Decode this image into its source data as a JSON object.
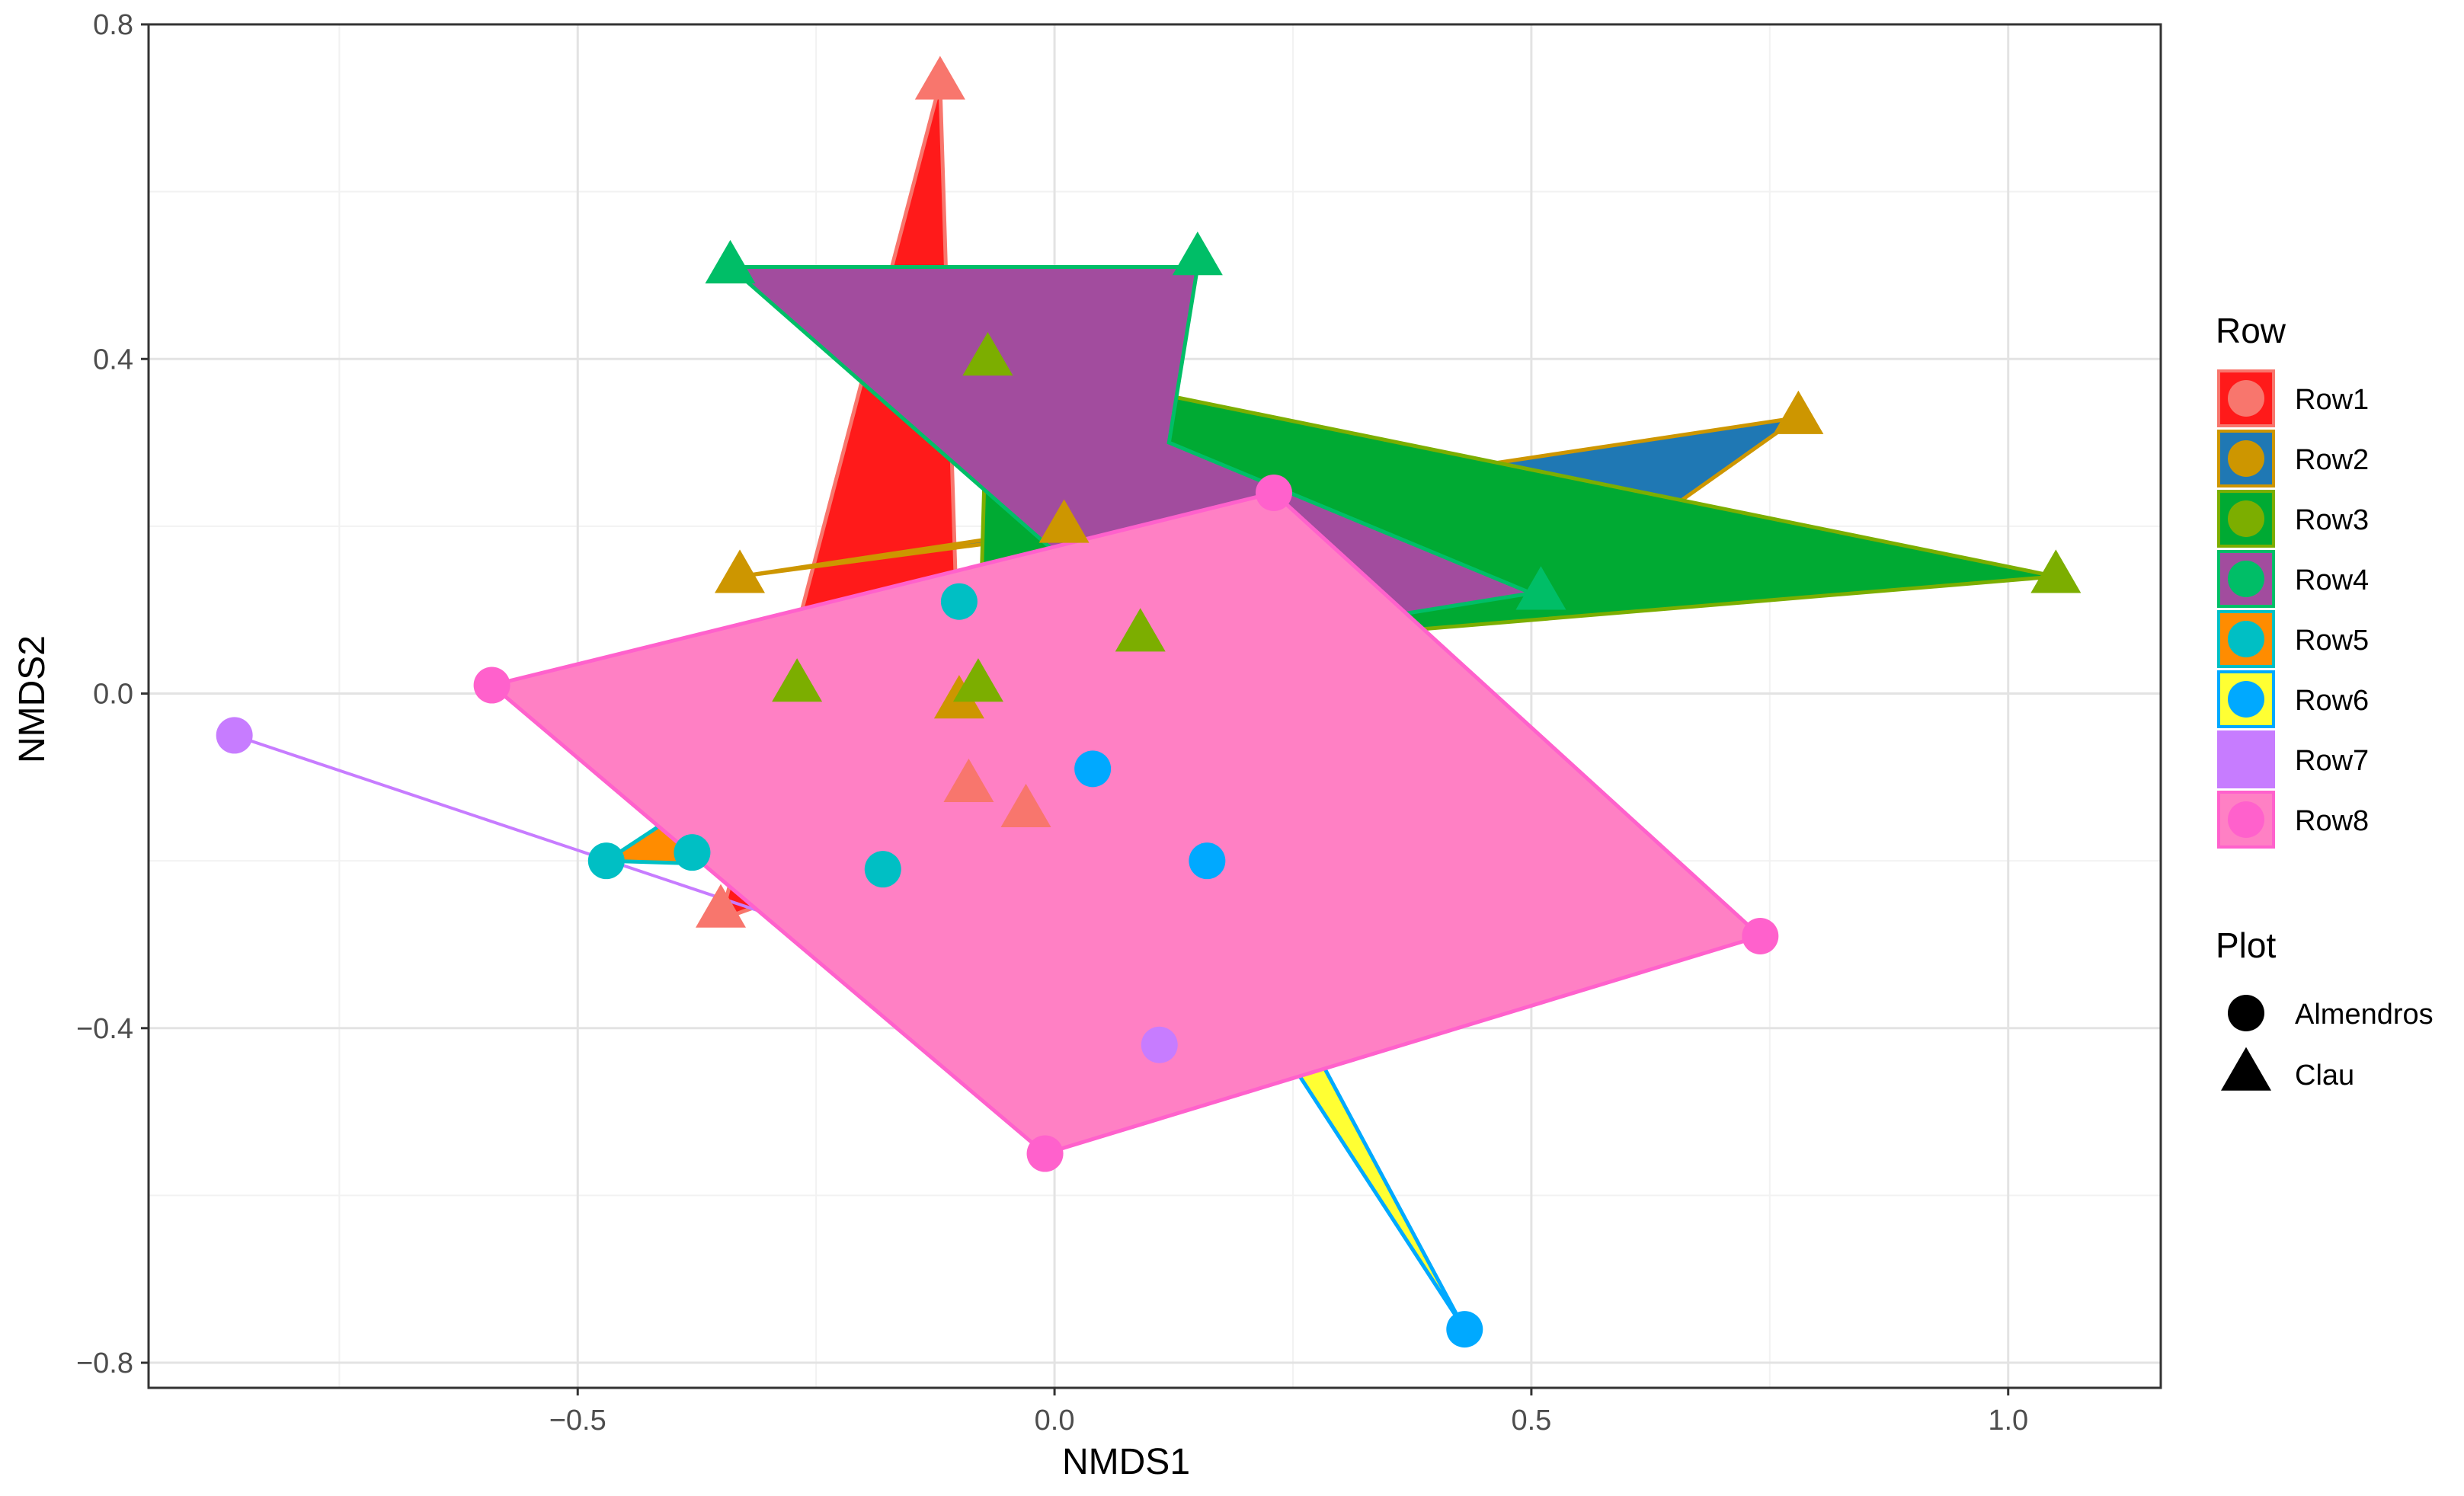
{
  "chart_data": {
    "type": "scatter",
    "title": "",
    "xlabel": "NMDS1",
    "ylabel": "NMDS2",
    "xlim": [
      -0.95,
      1.16
    ],
    "ylim": [
      -0.83,
      0.8
    ],
    "x_ticks": [
      -0.5,
      0.0,
      0.5,
      1.0
    ],
    "x_tick_labels": [
      "−0.5",
      "0.0",
      "0.5",
      "1.0"
    ],
    "y_ticks": [
      -0.8,
      -0.4,
      0.0,
      0.4,
      0.8
    ],
    "y_tick_labels": [
      "−0.8",
      "−0.4",
      "0.0",
      "0.4",
      "0.8"
    ],
    "grid": true,
    "legend_position": "right",
    "legend": {
      "color_title": "Row",
      "shape_title": "Plot",
      "shapes": [
        {
          "name": "Almendros",
          "shape": "circle"
        },
        {
          "name": "Clau",
          "shape": "triangle"
        }
      ]
    },
    "series": [
      {
        "name": "Row1",
        "color": "#F8766D",
        "fill": "#FF1A1A",
        "hull": [
          [
            -0.12,
            0.73
          ],
          [
            -0.1,
            0.0
          ],
          [
            -0.03,
            -0.14
          ],
          [
            -0.35,
            -0.27
          ]
        ],
        "points": [
          {
            "x": -0.12,
            "y": 0.73,
            "plot": "Clau"
          },
          {
            "x": -0.09,
            "y": -0.11,
            "plot": "Clau"
          },
          {
            "x": -0.03,
            "y": -0.14,
            "plot": "Clau"
          },
          {
            "x": -0.35,
            "y": -0.26,
            "plot": "Clau"
          }
        ]
      },
      {
        "name": "Row2",
        "color": "#CD9600",
        "fill": "#1F78B4",
        "hull": [
          [
            -0.33,
            0.14
          ],
          [
            0.78,
            0.33
          ],
          [
            0.52,
            0.12
          ],
          [
            0.0,
            0.19
          ]
        ],
        "points": [
          {
            "x": -0.33,
            "y": 0.14,
            "plot": "Clau"
          },
          {
            "x": 0.01,
            "y": 0.2,
            "plot": "Clau"
          },
          {
            "x": 0.78,
            "y": 0.33,
            "plot": "Clau"
          },
          {
            "x": -0.1,
            "y": -0.01,
            "plot": "Clau"
          }
        ]
      },
      {
        "name": "Row3",
        "color": "#7CAE00",
        "fill": "#00AA33",
        "hull": [
          [
            -0.07,
            0.4
          ],
          [
            1.05,
            0.14
          ],
          [
            0.1,
            0.05
          ],
          [
            -0.08,
            0.0
          ]
        ],
        "points": [
          {
            "x": -0.07,
            "y": 0.4,
            "plot": "Clau"
          },
          {
            "x": 1.05,
            "y": 0.14,
            "plot": "Clau"
          },
          {
            "x": -0.27,
            "y": 0.01,
            "plot": "Clau"
          },
          {
            "x": -0.08,
            "y": 0.01,
            "plot": "Clau"
          },
          {
            "x": 0.09,
            "y": 0.07,
            "plot": "Clau"
          }
        ]
      },
      {
        "name": "Row4",
        "color": "#00BE67",
        "fill": "#A24C9E",
        "hull": [
          [
            -0.34,
            0.51
          ],
          [
            0.15,
            0.51
          ],
          [
            0.12,
            0.3
          ],
          [
            0.5,
            0.12
          ],
          [
            0.12,
            0.05
          ]
        ],
        "points": [
          {
            "x": -0.34,
            "y": 0.51,
            "plot": "Clau"
          },
          {
            "x": 0.15,
            "y": 0.52,
            "plot": "Clau"
          },
          {
            "x": 0.51,
            "y": 0.12,
            "plot": "Clau"
          }
        ]
      },
      {
        "name": "Row5",
        "color": "#00BFC4",
        "fill": "#FF8C00",
        "hull": [
          [
            -0.47,
            -0.2
          ],
          [
            -0.27,
            -0.05
          ],
          [
            -0.18,
            -0.21
          ]
        ],
        "points": [
          {
            "x": -0.1,
            "y": 0.11,
            "plot": "Almendros"
          },
          {
            "x": -0.47,
            "y": -0.2,
            "plot": "Almendros"
          },
          {
            "x": -0.38,
            "y": -0.19,
            "plot": "Almendros"
          },
          {
            "x": -0.18,
            "y": -0.21,
            "plot": "Almendros"
          }
        ]
      },
      {
        "name": "Row6",
        "color": "#00A9FF",
        "fill": "#FFFF33",
        "hull": [
          [
            0.07,
            -0.13
          ],
          [
            0.43,
            -0.76
          ],
          [
            0.27,
            -0.42
          ]
        ],
        "points": [
          {
            "x": 0.04,
            "y": -0.09,
            "plot": "Almendros"
          },
          {
            "x": 0.16,
            "y": -0.2,
            "plot": "Almendros"
          },
          {
            "x": 0.43,
            "y": -0.76,
            "plot": "Almendros"
          }
        ]
      },
      {
        "name": "Row7",
        "color": "#C77CFF",
        "fill": "#C77CFF",
        "hull": [
          [
            -0.86,
            -0.05
          ],
          [
            0.11,
            -0.42
          ]
        ],
        "points": [
          {
            "x": -0.86,
            "y": -0.05,
            "plot": "Almendros"
          },
          {
            "x": 0.11,
            "y": -0.42,
            "plot": "Almendros"
          }
        ]
      },
      {
        "name": "Row8",
        "color": "#FF61CC",
        "fill": "#FF80C4",
        "hull": [
          [
            -0.59,
            0.01
          ],
          [
            0.23,
            0.24
          ],
          [
            0.74,
            -0.29
          ],
          [
            -0.01,
            -0.55
          ]
        ],
        "points": [
          {
            "x": -0.59,
            "y": 0.01,
            "plot": "Almendros"
          },
          {
            "x": 0.23,
            "y": 0.24,
            "plot": "Almendros"
          },
          {
            "x": 0.74,
            "y": -0.29,
            "plot": "Almendros"
          },
          {
            "x": -0.01,
            "y": -0.55,
            "plot": "Almendros"
          }
        ]
      }
    ]
  }
}
